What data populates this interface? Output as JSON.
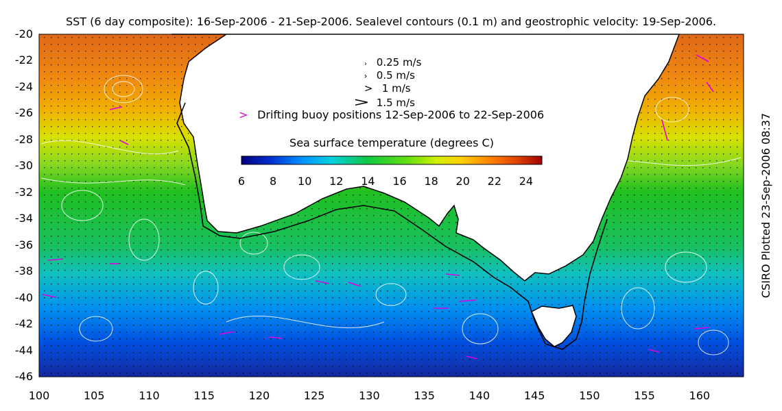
{
  "title": "SST (6 day composite): 16-Sep-2006 - 21-Sep-2006. Sealevel contours (0.1 m) and geostrophic velocity: 19-Sep-2006.",
  "credit": "CSIRO Plotted 23-Sep-2006 08:37",
  "y_axis": {
    "ticks": [
      "-20",
      "-22",
      "-24",
      "-26",
      "-28",
      "-30",
      "-32",
      "-34",
      "-36",
      "-38",
      "-40",
      "-42",
      "-44",
      "-46"
    ]
  },
  "x_axis": {
    "ticks": [
      "100",
      "105",
      "110",
      "115",
      "120",
      "125",
      "130",
      "135",
      "140",
      "145",
      "150",
      "155",
      "160"
    ]
  },
  "legend": {
    "vectors": [
      {
        "glyph": "›",
        "label": "0.25 m/s"
      },
      {
        "glyph": "›",
        "label": "0.5 m/s"
      },
      {
        "glyph": ">",
        "label": "1 m/s"
      },
      {
        "glyph": ">",
        "label": "1.5 m/s"
      }
    ],
    "buoy_marker": ">",
    "buoy_label": "Drifting buoy positions 12-Sep-2006 to 22-Sep-2006",
    "buoy_color": "#e000e0"
  },
  "colorbar": {
    "title": "Sea surface temperature (degrees C)",
    "ticks": [
      "6",
      "8",
      "10",
      "12",
      "14",
      "16",
      "18",
      "20",
      "22",
      "24"
    ],
    "colors": [
      "#00007f",
      "#0030d0",
      "#0090ff",
      "#00d0e0",
      "#10c840",
      "#60e010",
      "#d0f000",
      "#ffd000",
      "#ff8000",
      "#e04000",
      "#9c0000"
    ]
  },
  "colors": {
    "land": "#ffffff",
    "coast": "#000000",
    "contours": "#ffffff"
  }
}
